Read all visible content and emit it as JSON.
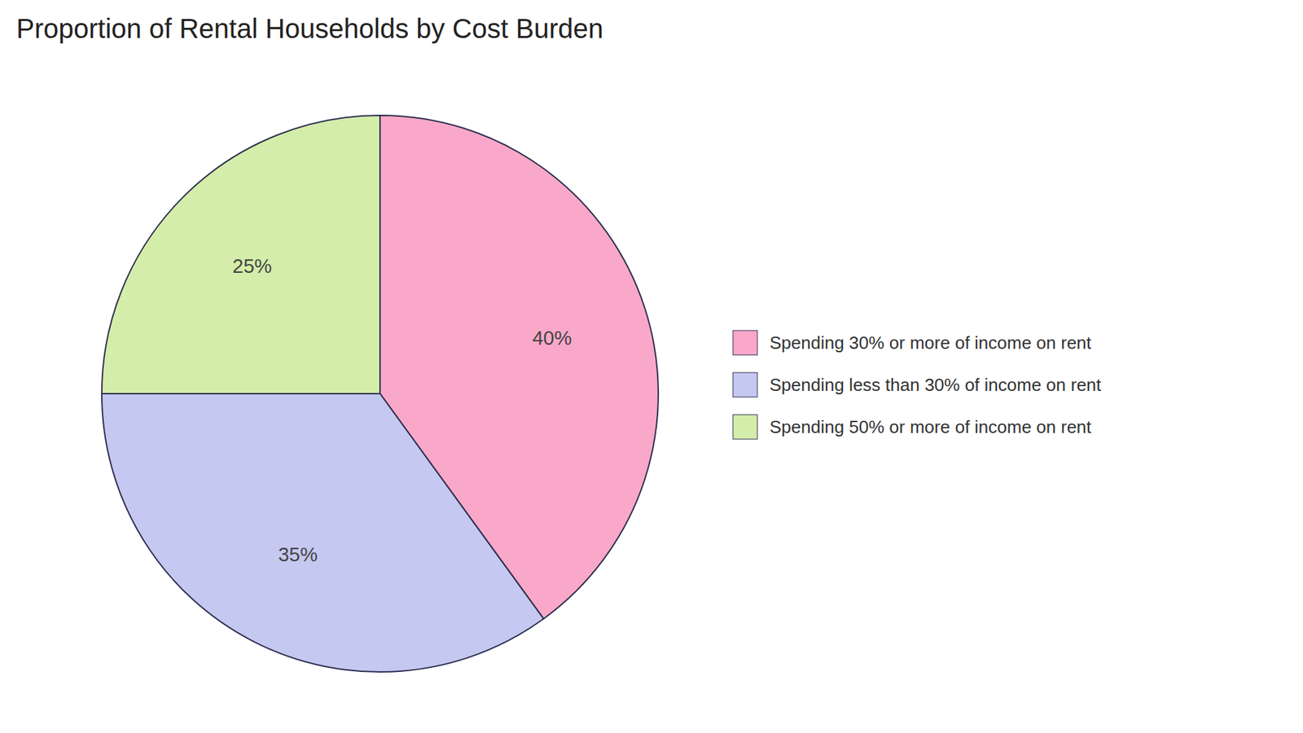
{
  "chart_data": {
    "type": "pie",
    "title": "Proportion of Rental Households by Cost Burden",
    "categories": [
      "Spending 30% or more of income on rent",
      "Spending less than 30% of income on rent",
      "Spending 50% or more of income on rent"
    ],
    "values": [
      40,
      35,
      25
    ],
    "value_labels": [
      "40%",
      "35%",
      "25%"
    ],
    "colors": [
      "#F9A8C9",
      "#C5C8F0",
      "#D4EDAA"
    ],
    "data_labels": true,
    "legend": "right"
  }
}
